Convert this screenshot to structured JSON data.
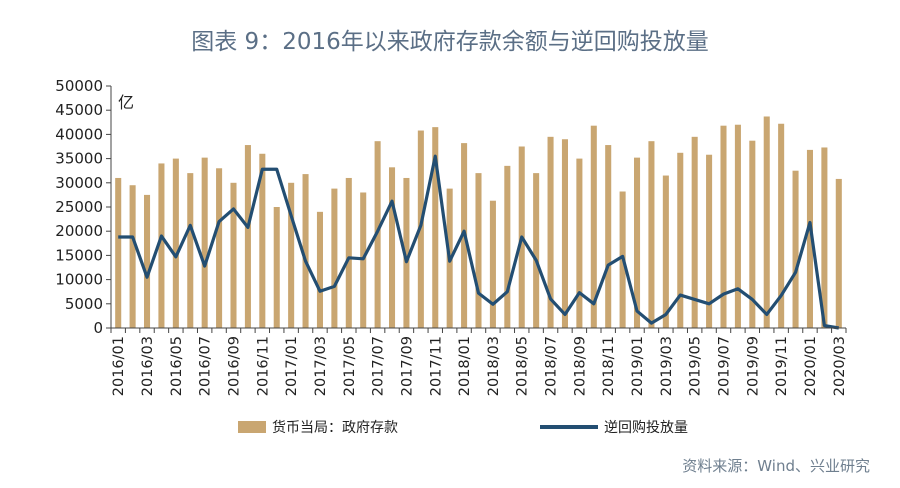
{
  "title": "图表 9：2016年以来政府存款余额与逆回购投放量",
  "source": "资料来源：Wind、兴业研究",
  "colors": {
    "bar": "#c9a671",
    "line": "#234e72",
    "axis": "#444444",
    "text": "#222222"
  },
  "chart_data": {
    "type": "bar",
    "unit_label": "亿",
    "ylim": [
      0,
      50000
    ],
    "y_ticks": [
      0,
      5000,
      10000,
      15000,
      20000,
      25000,
      30000,
      35000,
      40000,
      45000,
      50000
    ],
    "x": [
      "2016/01",
      "2016/02",
      "2016/03",
      "2016/04",
      "2016/05",
      "2016/06",
      "2016/07",
      "2016/08",
      "2016/09",
      "2016/10",
      "2016/11",
      "2016/12",
      "2017/01",
      "2017/02",
      "2017/03",
      "2017/04",
      "2017/05",
      "2017/06",
      "2017/07",
      "2017/08",
      "2017/09",
      "2017/10",
      "2017/11",
      "2017/12",
      "2018/01",
      "2018/02",
      "2018/03",
      "2018/04",
      "2018/05",
      "2018/06",
      "2018/07",
      "2018/08",
      "2018/09",
      "2018/10",
      "2018/11",
      "2018/12",
      "2019/01",
      "2019/02",
      "2019/03",
      "2019/04",
      "2019/05",
      "2019/06",
      "2019/07",
      "2019/08",
      "2019/09",
      "2019/10",
      "2019/11",
      "2019/12",
      "2020/01",
      "2020/02",
      "2020/03"
    ],
    "x_tick_labels": [
      "2016/01",
      "2016/03",
      "2016/05",
      "2016/07",
      "2016/09",
      "2016/11",
      "2017/01",
      "2017/03",
      "2017/05",
      "2017/07",
      "2017/09",
      "2017/11",
      "2018/01",
      "2018/03",
      "2018/05",
      "2018/07",
      "2018/09",
      "2018/11",
      "2019/01",
      "2019/03",
      "2019/05",
      "2019/07",
      "2019/09",
      "2019/11",
      "2020/01",
      "2020/03"
    ],
    "series": [
      {
        "name": "货币当局：政府存款",
        "type": "bar",
        "values": [
          31000,
          29500,
          27500,
          34000,
          35000,
          32000,
          35200,
          33000,
          30000,
          37800,
          36000,
          25000,
          30000,
          31800,
          24000,
          28800,
          31000,
          28000,
          38600,
          33200,
          31000,
          40800,
          41500,
          28800,
          38200,
          32000,
          26300,
          33500,
          37500,
          32000,
          39500,
          39000,
          35000,
          41800,
          37800,
          28200,
          35200,
          38600,
          31500,
          36200,
          39500,
          35800,
          41800,
          42000,
          38700,
          43700,
          42200,
          32500,
          36800,
          37300,
          30800
        ]
      },
      {
        "name": "逆回购投放量",
        "type": "line",
        "values": [
          18800,
          18800,
          10500,
          19000,
          14700,
          21200,
          12800,
          22000,
          24600,
          20800,
          32800,
          32800,
          23200,
          13800,
          7600,
          8600,
          14500,
          14300,
          20000,
          26200,
          13700,
          21200,
          35500,
          13800,
          20000,
          7200,
          4900,
          7500,
          18800,
          14000,
          6000,
          2800,
          7300,
          5000,
          13000,
          14800,
          3500,
          1000,
          2800,
          6800,
          5900,
          5000,
          7000,
          8100,
          5900,
          2800,
          6700,
          11500,
          21800,
          500,
          0
        ]
      }
    ],
    "grid": false,
    "legend_position": "bottom"
  }
}
